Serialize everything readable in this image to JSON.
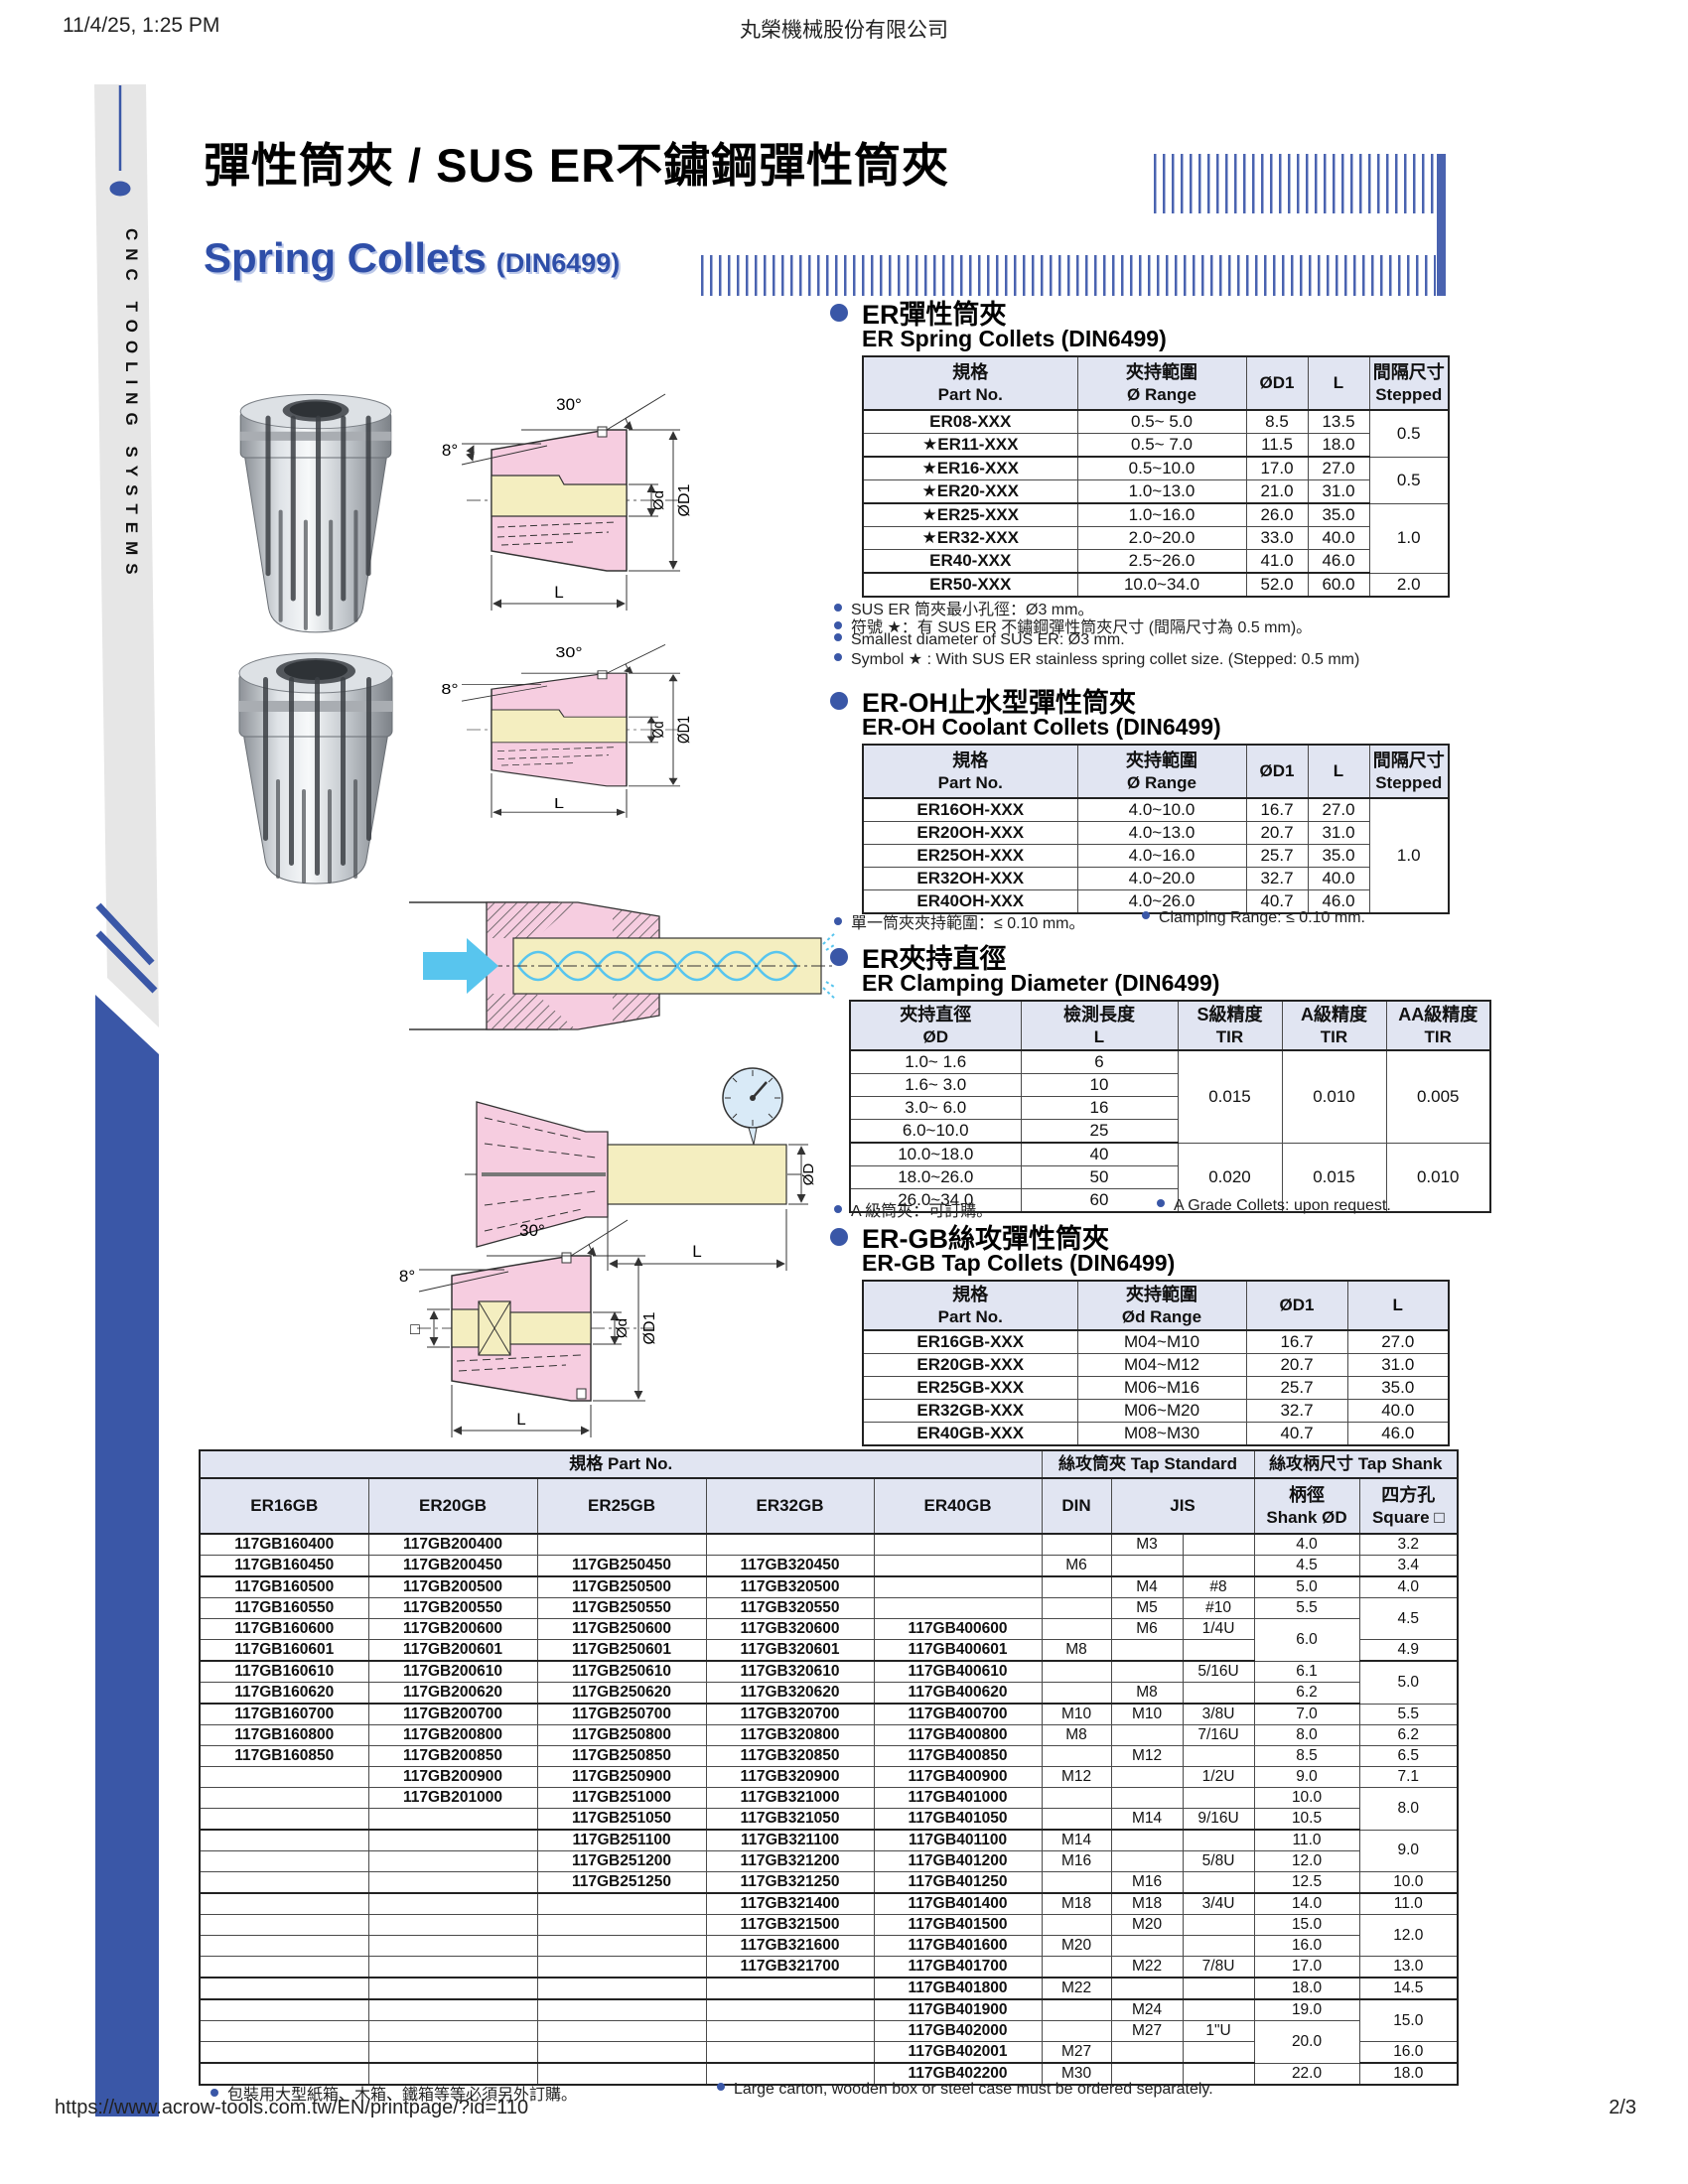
{
  "page": {
    "datetime": "11/4/25, 1:25 PM",
    "company": "丸榮機械股份有限公司",
    "url": "https://www.acrow-tools.com.tw/EN/printpage/?id=110",
    "page_num": "2/3"
  },
  "sidebar": {
    "text": "CNC TOOLING SYSTEMS"
  },
  "title": {
    "zh": "彈性筒夾 / SUS ER不鏽鋼彈性筒夾",
    "en": "Spring Collets",
    "din": "(DIN6499)"
  },
  "labels": {
    "deg30": "30°",
    "deg8": "8°",
    "od": "Ød",
    "od1": "ØD1",
    "odb": "ØD",
    "l": "L",
    "sq": "□"
  },
  "colors": {
    "accent_blue": "#3a57a7",
    "table_header_bg": "#e1e5f2",
    "diagram_pink": "#f6cde0",
    "diagram_yellow": "#f4eec0",
    "coolant_blue": "#58c5ee"
  },
  "sections": {
    "spring": {
      "zh": "ER彈性筒夾",
      "en": "ER Spring Collets (DIN6499)",
      "notes": [
        "SUS ER 筒夾最小孔徑：Ø3 mm。",
        "符號 ★：有 SUS ER 不鏽鋼彈性筒夾尺寸 (間隔尺寸為 0.5 mm)。",
        "Smallest diameter of SUS ER: Ø3 mm.",
        "Symbol ★ : With SUS ER stainless spring collet size. (Stepped: 0.5 mm)"
      ]
    },
    "oh": {
      "zh": "ER-OH止水型彈性筒夾",
      "en": "ER-OH Coolant Collets (DIN6499)",
      "notes": [
        "單一筒夾夾持範圍：≤ 0.10 mm。",
        "Clamping  Range: ≤ 0.10 mm."
      ]
    },
    "clamp": {
      "zh": "ER夾持直徑",
      "en": "ER Clamping Diameter (DIN6499)",
      "notes": [
        "A 級筒夾：可訂購。",
        "A Grade Collets: upon request."
      ]
    },
    "gb": {
      "zh": "ER-GB絲攻彈性筒夾",
      "en": "ER-GB Tap Collets (DIN6499)"
    },
    "main": {
      "notes": [
        "包裝用大型紙箱、木箱、鐵箱等等必須另外訂購。",
        "Large carton, wooden box or steel case must be ordered separately."
      ]
    }
  },
  "tables": {
    "spring": {
      "header": {
        "c1z": "規格",
        "c1e": "Part No.",
        "c2z": "夾持範圍",
        "c2e": "Ø Range",
        "c3": "ØD1",
        "c4": "L",
        "c5z": "間隔尺寸",
        "c5e": "Stepped"
      },
      "bold_cols": [
        0
      ],
      "group_ends": [
        2,
        4,
        7
      ],
      "rows": [
        [
          "ER08-XXX",
          "0.5~ 5.0",
          "8.5",
          "13.5",
          {
            "t": "0.5",
            "rs": 2
          }
        ],
        [
          "★ER11-XXX",
          "0.5~ 7.0",
          "11.5",
          "18.0",
          null
        ],
        [
          "★ER16-XXX",
          "0.5~10.0",
          "17.0",
          "27.0",
          {
            "t": "0.5",
            "rs": 2
          }
        ],
        [
          "★ER20-XXX",
          "1.0~13.0",
          "21.0",
          "31.0",
          null
        ],
        [
          "★ER25-XXX",
          "1.0~16.0",
          "26.0",
          "35.0",
          {
            "t": "1.0",
            "rs": 3
          }
        ],
        [
          "★ER32-XXX",
          "2.0~20.0",
          "33.0",
          "40.0",
          null
        ],
        [
          "ER40-XXX",
          "2.5~26.0",
          "41.0",
          "46.0",
          null
        ],
        [
          "ER50-XXX",
          "10.0~34.0",
          "52.0",
          "60.0",
          "2.0"
        ]
      ]
    },
    "oh": {
      "header": {
        "c1z": "規格",
        "c1e": "Part No.",
        "c2z": "夾持範圍",
        "c2e": "Ø Range",
        "c3": "ØD1",
        "c4": "L",
        "c5z": "間隔尺寸",
        "c5e": "Stepped"
      },
      "bold_cols": [
        0
      ],
      "group_ends": [],
      "rows": [
        [
          "ER16OH-XXX",
          "4.0~10.0",
          "16.7",
          "27.0",
          {
            "t": "1.0",
            "rs": 5
          }
        ],
        [
          "ER20OH-XXX",
          "4.0~13.0",
          "20.7",
          "31.0",
          null
        ],
        [
          "ER25OH-XXX",
          "4.0~16.0",
          "25.7",
          "35.0",
          null
        ],
        [
          "ER32OH-XXX",
          "4.0~20.0",
          "32.7",
          "40.0",
          null
        ],
        [
          "ER40OH-XXX",
          "4.0~26.0",
          "40.7",
          "46.0",
          null
        ]
      ]
    },
    "clamp": {
      "header": {
        "c1z": "夾持直徑",
        "c1e": "ØD",
        "c2z": "檢測長度",
        "c2e": "L",
        "c3z": "S級精度",
        "c3e": "TIR",
        "c4z": "A級精度",
        "c4e": "TIR",
        "c5z": "AA級精度",
        "c5e": "TIR"
      },
      "bold_cols": [],
      "group_ends": [
        4
      ],
      "rows": [
        [
          "1.0~ 1.6",
          "6",
          {
            "t": "0.015",
            "rs": 4
          },
          {
            "t": "0.010",
            "rs": 4
          },
          {
            "t": "0.005",
            "rs": 4
          }
        ],
        [
          "1.6~ 3.0",
          "10",
          null,
          null,
          null
        ],
        [
          "3.0~ 6.0",
          "16",
          null,
          null,
          null
        ],
        [
          "6.0~10.0",
          "25",
          null,
          null,
          null
        ],
        [
          "10.0~18.0",
          "40",
          {
            "t": "0.020",
            "rs": 3
          },
          {
            "t": "0.015",
            "rs": 3
          },
          {
            "t": "0.010",
            "rs": 3
          }
        ],
        [
          "18.0~26.0",
          "50",
          null,
          null,
          null
        ],
        [
          "26.0~34.0",
          "60",
          null,
          null,
          null
        ]
      ]
    },
    "gb": {
      "header": {
        "c1z": "規格",
        "c1e": "Part No.",
        "c2z": "夾持範圍",
        "c2e": "Ød Range",
        "c3": "ØD1",
        "c4": "L"
      },
      "bold_cols": [
        0
      ],
      "group_ends": [],
      "rows": [
        [
          "ER16GB-XXX",
          "M04~M10",
          "16.7",
          "27.0"
        ],
        [
          "ER20GB-XXX",
          "M04~M12",
          "20.7",
          "31.0"
        ],
        [
          "ER25GB-XXX",
          "M06~M16",
          "25.7",
          "35.0"
        ],
        [
          "ER32GB-XXX",
          "M06~M20",
          "32.7",
          "40.0"
        ],
        [
          "ER40GB-XXX",
          "M08~M30",
          "40.7",
          "46.0"
        ]
      ]
    },
    "main": {
      "header": {
        "part_group": "規格  Part No.",
        "tap_std_group": "絲攻筒夾  Tap Standard",
        "tap_shank_group": "絲攻柄尺寸  Tap Shank",
        "er16": "ER16GB",
        "er20": "ER20GB",
        "er25": "ER25GB",
        "er32": "ER32GB",
        "er40": "ER40GB",
        "din": "DIN",
        "jis": "JIS",
        "shank_zh": "柄徑",
        "shank_en": "Shank ØD",
        "square_zh": "四方孔",
        "square_en": "Square □"
      },
      "bold_cols": [
        0,
        1,
        2,
        3,
        4
      ],
      "group_ends": [
        2,
        6,
        8,
        14,
        17,
        21,
        22,
        25
      ],
      "rows": [
        [
          "117GB160400",
          "117GB200400",
          "",
          "",
          "",
          "",
          "M3",
          "",
          "4.0",
          "3.2"
        ],
        [
          "117GB160450",
          "117GB200450",
          "117GB250450",
          "117GB320450",
          "",
          "M6",
          "",
          "",
          "4.5",
          "3.4"
        ],
        [
          "117GB160500",
          "117GB200500",
          "117GB250500",
          "117GB320500",
          "",
          "",
          "M4",
          "#8",
          "5.0",
          "4.0"
        ],
        [
          "117GB160550",
          "117GB200550",
          "117GB250550",
          "117GB320550",
          "",
          "",
          "M5",
          "#10",
          "5.5",
          {
            "t": "4.5",
            "rs": 2
          }
        ],
        [
          "117GB160600",
          "117GB200600",
          "117GB250600",
          "117GB320600",
          "117GB400600",
          "",
          "M6",
          "1/4U",
          {
            "t": "6.0",
            "rs": 2
          },
          null
        ],
        [
          "117GB160601",
          "117GB200601",
          "117GB250601",
          "117GB320601",
          "117GB400601",
          "M8",
          "",
          "",
          null,
          "4.9"
        ],
        [
          "117GB160610",
          "117GB200610",
          "117GB250610",
          "117GB320610",
          "117GB400610",
          "",
          "",
          "5/16U",
          "6.1",
          {
            "t": "5.0",
            "rs": 2
          }
        ],
        [
          "117GB160620",
          "117GB200620",
          "117GB250620",
          "117GB320620",
          "117GB400620",
          "",
          "M8",
          "",
          "6.2",
          null
        ],
        [
          "117GB160700",
          "117GB200700",
          "117GB250700",
          "117GB320700",
          "117GB400700",
          "M10",
          "M10",
          "3/8U",
          "7.0",
          "5.5"
        ],
        [
          "117GB160800",
          "117GB200800",
          "117GB250800",
          "117GB320800",
          "117GB400800",
          "M8",
          "",
          "7/16U",
          "8.0",
          "6.2"
        ],
        [
          "117GB160850",
          "117GB200850",
          "117GB250850",
          "117GB320850",
          "117GB400850",
          "",
          "M12",
          "",
          "8.5",
          "6.5"
        ],
        [
          "",
          "117GB200900",
          "117GB250900",
          "117GB320900",
          "117GB400900",
          "M12",
          "",
          "1/2U",
          "9.0",
          "7.1"
        ],
        [
          "",
          "117GB201000",
          "117GB251000",
          "117GB321000",
          "117GB401000",
          "",
          "",
          "",
          "10.0",
          {
            "t": "8.0",
            "rs": 2
          }
        ],
        [
          "",
          "",
          "117GB251050",
          "117GB321050",
          "117GB401050",
          "",
          "M14",
          "9/16U",
          "10.5",
          null
        ],
        [
          "",
          "",
          "117GB251100",
          "117GB321100",
          "117GB401100",
          "M14",
          "",
          "",
          "11.0",
          {
            "t": "9.0",
            "rs": 2
          }
        ],
        [
          "",
          "",
          "117GB251200",
          "117GB321200",
          "117GB401200",
          "M16",
          "",
          "5/8U",
          "12.0",
          null
        ],
        [
          "",
          "",
          "117GB251250",
          "117GB321250",
          "117GB401250",
          "",
          "M16",
          "",
          "12.5",
          "10.0"
        ],
        [
          "",
          "",
          "",
          "117GB321400",
          "117GB401400",
          "M18",
          "M18",
          "3/4U",
          "14.0",
          "11.0"
        ],
        [
          "",
          "",
          "",
          "117GB321500",
          "117GB401500",
          "",
          "M20",
          "",
          "15.0",
          {
            "t": "12.0",
            "rs": 2
          }
        ],
        [
          "",
          "",
          "",
          "117GB321600",
          "117GB401600",
          "M20",
          "",
          "",
          "16.0",
          null
        ],
        [
          "",
          "",
          "",
          "117GB321700",
          "117GB401700",
          "",
          "M22",
          "7/8U",
          "17.0",
          "13.0"
        ],
        [
          "",
          "",
          "",
          "",
          "117GB401800",
          "M22",
          "",
          "",
          "18.0",
          "14.5"
        ],
        [
          "",
          "",
          "",
          "",
          "117GB401900",
          "",
          "M24",
          "",
          "19.0",
          {
            "t": "15.0",
            "rs": 2
          }
        ],
        [
          "",
          "",
          "",
          "",
          "117GB402000",
          "",
          "M27",
          "1\"U",
          {
            "t": "20.0",
            "rs": 2
          },
          null
        ],
        [
          "",
          "",
          "",
          "",
          "117GB402001",
          "M27",
          "",
          "",
          null,
          "16.0"
        ],
        [
          "",
          "",
          "",
          "",
          "117GB402200",
          "M30",
          "",
          "",
          "22.0",
          "18.0"
        ]
      ]
    }
  }
}
